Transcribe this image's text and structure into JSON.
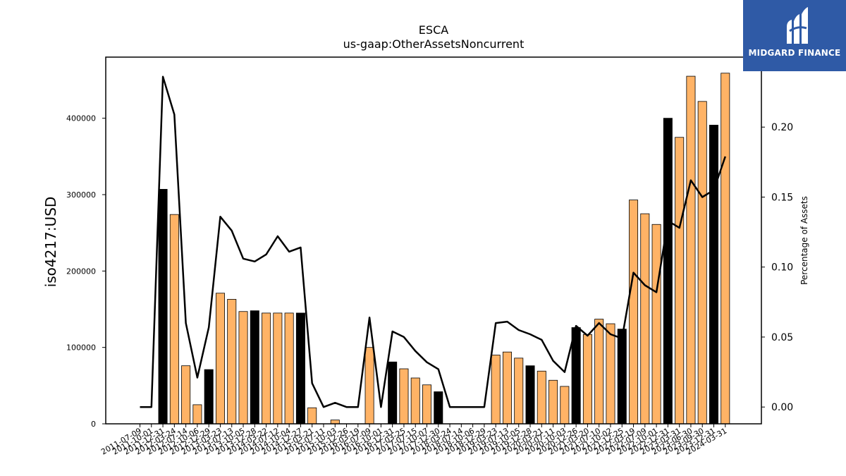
{
  "chart_data": {
    "type": "bar",
    "title": "ESCA",
    "subtitle": "us-gaap:OtherAssetsNoncurrent",
    "ylabel": "iso4217:USD",
    "y2label": "Percentage of Assets",
    "ylim": [
      0,
      480000
    ],
    "y2lim": [
      -0.012,
      0.25
    ],
    "yticks": [
      0,
      100000,
      200000,
      300000,
      400000
    ],
    "y2ticks": [
      0.0,
      0.05,
      0.1,
      0.15,
      0.2
    ],
    "y2tick_labels": [
      "0.00",
      "0.05",
      "0.10",
      "0.15",
      "0.20"
    ],
    "x_tick_labels": [
      "2011-07-09",
      "2011-10-01",
      "2011-12-31",
      "2012-03-24",
      "2012-07-14",
      "2012-10-06",
      "2012-12-29",
      "2013-03-23",
      "2013-07-13",
      "2013-10-05",
      "2013-12-28",
      "2014-03-22",
      "2014-07-12",
      "2014-10-04",
      "2014-12-27",
      "2015-03-21",
      "2015-07-11",
      "2015-10-03",
      "2015-12-26",
      "2016-03-19",
      "2016-07-09",
      "2016-10-01",
      "2016-12-31",
      "2017-03-25",
      "2017-07-15",
      "2017-10-07",
      "2017-12-30",
      "2018-03-24",
      "2018-07-14",
      "2018-10-06",
      "2018-12-29",
      "2019-03-23",
      "2019-07-13",
      "2019-10-05",
      "2019-12-28",
      "2020-03-21",
      "2020-07-11",
      "2020-10-03",
      "2020-12-26",
      "2021-03-20",
      "2021-07-10",
      "2021-10-02",
      "2021-12-25",
      "2022-03-19",
      "2022-07-09",
      "2022-10-01",
      "2022-12-31",
      "2023-03-31",
      "2023-06-30",
      "2023-09-30",
      "2023-12-31",
      "2024-03-31"
    ],
    "series": [
      {
        "kind": "bar",
        "axis": "left",
        "values": [
          0,
          0,
          307000,
          274000,
          76000,
          25000,
          71000,
          171000,
          163000,
          147000,
          148000,
          145000,
          145000,
          145000,
          145000,
          21000,
          0,
          5000,
          0,
          0,
          100000,
          0,
          81000,
          72000,
          60000,
          51000,
          42000,
          0,
          0,
          0,
          0,
          90000,
          94000,
          86000,
          76000,
          69000,
          57000,
          49000,
          126000,
          117000,
          137000,
          131000,
          124000,
          293000,
          275000,
          261000,
          400000,
          375000,
          455000,
          422000,
          391000,
          459000
        ],
        "annual": [
          false,
          false,
          true,
          false,
          false,
          false,
          true,
          false,
          false,
          false,
          true,
          false,
          false,
          false,
          true,
          false,
          false,
          false,
          false,
          false,
          false,
          false,
          true,
          false,
          false,
          false,
          true,
          false,
          false,
          false,
          false,
          false,
          false,
          false,
          true,
          false,
          false,
          false,
          true,
          false,
          false,
          false,
          true,
          false,
          false,
          false,
          true,
          false,
          false,
          false,
          true,
          false
        ]
      },
      {
        "kind": "line",
        "axis": "right",
        "values": [
          0,
          0,
          0.236,
          0.209,
          0.06,
          0.021,
          0.057,
          0.136,
          0.126,
          0.106,
          0.104,
          0.109,
          0.122,
          0.111,
          0.114,
          0.017,
          0,
          0.003,
          0,
          0,
          0.064,
          0,
          0.054,
          0.05,
          0.04,
          0.032,
          0.027,
          0,
          0,
          0,
          0,
          0.06,
          0.061,
          0.055,
          0.052,
          0.048,
          0.033,
          0.025,
          0.058,
          0.051,
          0.06,
          0.052,
          0.049,
          0.096,
          0.087,
          0.082,
          0.133,
          0.128,
          0.162,
          0.15,
          0.155,
          0.179
        ]
      }
    ],
    "colors": {
      "bar": "#ffb366",
      "annual_bar": "#000000",
      "line": "#000000"
    }
  },
  "logo": {
    "text": "MIDGARD FINANCE",
    "background": "#2f5aa6"
  }
}
